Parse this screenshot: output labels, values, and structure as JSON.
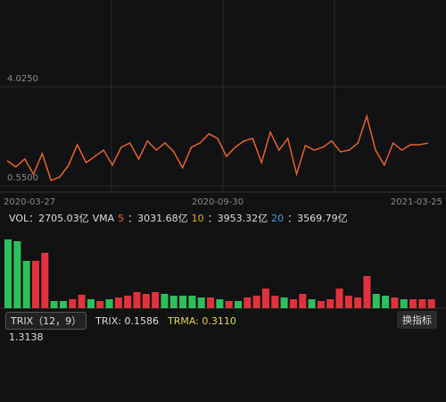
{
  "chart_data": [
    {
      "type": "line",
      "color": "#e8622a",
      "categories": [
        "2020-03-27",
        null,
        null,
        null,
        null,
        null,
        null,
        null,
        null,
        null,
        null,
        null,
        null,
        null,
        null,
        null,
        null,
        null,
        null,
        null,
        null,
        null,
        null,
        null,
        "2020-09-30",
        null,
        null,
        null,
        null,
        null,
        null,
        null,
        null,
        null,
        null,
        null,
        null,
        null,
        null,
        null,
        null,
        null,
        null,
        null,
        null,
        null,
        null,
        null,
        "2021-03-25"
      ],
      "values": [
        1.43,
        1.21,
        1.49,
        0.96,
        1.68,
        0.74,
        0.86,
        1.27,
        1.99,
        1.36,
        1.58,
        1.8,
        1.27,
        1.9,
        2.05,
        1.49,
        2.12,
        1.8,
        2.05,
        1.74,
        1.18,
        1.9,
        2.05,
        2.37,
        2.21,
        1.58,
        1.9,
        2.12,
        2.21,
        1.36,
        2.43,
        1.8,
        2.21,
        0.96,
        1.96,
        1.8,
        1.9,
        2.12,
        1.74,
        1.8,
        2.05,
        2.99,
        1.8,
        1.27,
        2.05,
        1.8,
        1.99,
        1.99,
        2.05
      ],
      "ylim": [
        0.33,
        7.06
      ],
      "yticks": [
        {
          "value": 4.025,
          "label": "4.0250",
          "color": "#888888"
        },
        {
          "value": 0.55,
          "label": "0.5500",
          "color": "#2fbf5a"
        }
      ]
    },
    {
      "type": "bar",
      "values": [
        77,
        75,
        53,
        53,
        62,
        8,
        8,
        10,
        15,
        10,
        8,
        10,
        12,
        14,
        18,
        16,
        18,
        16,
        14,
        14,
        14,
        12,
        12,
        10,
        8,
        8,
        12,
        14,
        22,
        14,
        12,
        10,
        16,
        10,
        8,
        10,
        22,
        14,
        12,
        36,
        16,
        14,
        12,
        10,
        10,
        10,
        10
      ],
      "colors": [
        "#2fbf5a",
        "#2fbf5a",
        "#2fbf5a",
        "#e0323c",
        "#e0323c",
        "#2fbf5a",
        "#2fbf5a",
        "#e0323c",
        "#e0323c",
        "#2fbf5a",
        "#e0323c",
        "#2fbf5a",
        "#e0323c",
        "#e0323c",
        "#e0323c",
        "#e0323c",
        "#e0323c",
        "#2fbf5a",
        "#2fbf5a",
        "#2fbf5a",
        "#2fbf5a",
        "#2fbf5a",
        "#e0323c",
        "#2fbf5a",
        "#e0323c",
        "#2fbf5a",
        "#e0323c",
        "#e0323c",
        "#e0323c",
        "#e0323c",
        "#2fbf5a",
        "#e0323c",
        "#e0323c",
        "#2fbf5a",
        "#e0323c",
        "#e0323c",
        "#e0323c",
        "#e0323c",
        "#e0323c",
        "#e0323c",
        "#2fbf5a",
        "#2fbf5a",
        "#e0323c",
        "#2fbf5a",
        "#e0323c",
        "#e0323c",
        "#e0323c"
      ],
      "ylim": [
        0,
        80
      ]
    }
  ],
  "vol_info": [
    {
      "text": "VOL：2705.03亿",
      "color": "#dddddd"
    },
    {
      "text": "VMA",
      "color": "#dddddd"
    },
    {
      "text": "5",
      "color": "#e8622a"
    },
    {
      "text": "：3031.68亿",
      "color": "#dddddd"
    },
    {
      "text": "10",
      "color": "#e6a817"
    },
    {
      "text": "：3953.32亿",
      "color": "#dddddd"
    },
    {
      "text": "20",
      "color": "#3aa0e0"
    },
    {
      "text": "：3569.79亿",
      "color": "#dddddd"
    }
  ],
  "indicator": {
    "name": "TRIX（12，9）",
    "readings": [
      {
        "text": "TRIX: 0.1586",
        "color": "#dddddd"
      },
      {
        "text": "TRMA: 0.3110",
        "color": "#e6d34a"
      }
    ],
    "button": "换指标",
    "level": "1.3138"
  }
}
